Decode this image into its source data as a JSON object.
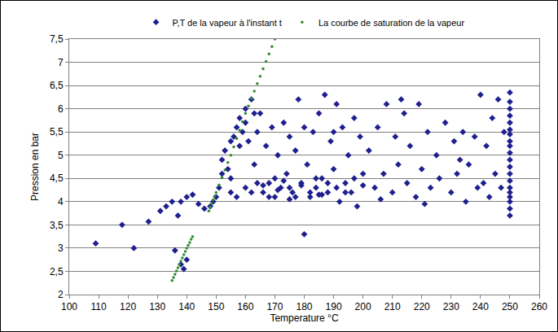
{
  "chart_data": {
    "type": "scatter",
    "x_label": "Temperature °C",
    "y_label": "Pression en bar",
    "grid": true,
    "legend": "top",
    "xlim": [
      100,
      260
    ],
    "xticks": [
      100,
      110,
      120,
      130,
      140,
      150,
      160,
      170,
      180,
      190,
      200,
      210,
      220,
      230,
      240,
      250,
      260
    ],
    "ylim": [
      2,
      7.5
    ],
    "yticks": [
      2,
      {
        "value": 2.5,
        "label": "2,5"
      },
      3,
      {
        "value": 3.5,
        "label": "3,5"
      },
      4,
      {
        "value": 4.5,
        "label": "4,5"
      },
      5,
      {
        "value": 5.5,
        "label": "5,5"
      },
      6,
      {
        "value": 6.5,
        "label": "6,5"
      },
      7,
      {
        "value": 7.5,
        "label": "7,5"
      }
    ],
    "series": [
      {
        "name": "P,T de la vapeur à l'instant t",
        "color": "#1f1f8f",
        "marker": "diamond",
        "x": [
          109,
          118,
          122,
          127,
          131,
          133,
          135,
          137,
          138,
          140,
          142,
          136,
          138,
          139,
          140,
          144,
          146,
          148,
          149,
          150,
          151,
          152,
          152,
          153,
          154,
          155,
          155,
          156,
          157,
          158,
          158,
          159,
          160,
          160,
          161,
          162,
          163,
          163,
          164,
          165,
          166,
          167,
          168,
          169,
          170,
          171,
          172,
          173,
          174,
          175,
          176,
          177,
          178,
          179,
          180,
          181,
          182,
          183,
          184,
          185,
          186,
          187,
          188,
          189,
          190,
          191,
          192,
          193,
          194,
          195,
          196,
          197,
          198,
          199,
          200,
          170,
          175,
          180,
          185,
          190,
          155,
          157,
          160,
          162,
          164,
          166,
          168,
          171,
          173,
          175,
          177,
          179,
          182,
          184,
          186,
          188,
          191,
          194,
          197,
          200,
          202,
          204,
          205,
          207,
          208,
          210,
          211,
          212,
          214,
          215,
          216,
          218,
          219,
          220,
          222,
          223,
          225,
          226,
          228,
          230,
          231,
          232,
          234,
          235,
          236,
          238,
          239,
          240,
          241,
          242,
          243,
          244,
          245,
          246,
          247,
          248,
          206,
          213,
          221,
          233,
          250,
          250,
          250,
          250,
          250,
          250,
          250,
          250,
          250,
          250,
          250,
          250,
          250,
          250,
          250,
          250,
          250,
          250,
          250,
          250
        ],
        "values": [
          3.1,
          3.5,
          3.0,
          3.57,
          3.8,
          3.9,
          4.0,
          3.7,
          4.0,
          4.1,
          4.15,
          2.95,
          2.65,
          2.55,
          2.75,
          3.95,
          3.85,
          3.9,
          4.0,
          4.1,
          4.3,
          4.6,
          4.9,
          5.1,
          4.7,
          5.3,
          4.5,
          5.4,
          5.6,
          5.2,
          5.8,
          5.5,
          6.0,
          5.7,
          5.3,
          6.2,
          5.9,
          4.8,
          5.5,
          5.9,
          4.2,
          5.2,
          4.4,
          5.6,
          4.1,
          5.0,
          4.3,
          5.7,
          4.6,
          5.4,
          4.2,
          5.1,
          6.2,
          4.4,
          5.6,
          4.8,
          4.1,
          5.5,
          4.3,
          5.9,
          4.5,
          6.3,
          4.2,
          5.3,
          4.7,
          6.1,
          4.0,
          5.6,
          4.4,
          5.0,
          4.2,
          5.8,
          3.9,
          5.4,
          4.6,
          4.5,
          4.05,
          3.3,
          4.15,
          5.5,
          4.2,
          4.1,
          4.3,
          4.2,
          4.4,
          4.35,
          4.1,
          4.25,
          4.45,
          4.3,
          4.1,
          4.35,
          4.2,
          4.5,
          4.15,
          4.4,
          4.3,
          4.2,
          4.5,
          4.35,
          5.1,
          4.3,
          5.6,
          4.6,
          6.1,
          4.2,
          5.4,
          4.8,
          5.9,
          4.4,
          5.2,
          4.1,
          6.1,
          4.7,
          5.5,
          4.3,
          5.0,
          4.5,
          5.7,
          4.2,
          5.3,
          4.6,
          5.5,
          4.0,
          4.8,
          5.4,
          4.3,
          6.3,
          4.4,
          5.2,
          4.1,
          5.8,
          4.6,
          6.2,
          4.3,
          5.5,
          4.05,
          6.2,
          3.95,
          4.9,
          3.7,
          3.85,
          4.0,
          4.1,
          4.2,
          4.3,
          4.45,
          4.6,
          4.75,
          4.9,
          5.05,
          5.2,
          5.3,
          5.45,
          5.55,
          5.7,
          5.85,
          6.0,
          6.15,
          6.35
        ]
      },
      {
        "name": "La courbe de saturation de la vapeur",
        "color": "#2e8b2e",
        "marker": "circle",
        "x": [
          147.5,
          148,
          148.5,
          149,
          149.5,
          150,
          151,
          152,
          153,
          154,
          155,
          156,
          157,
          158,
          159,
          160,
          161,
          162,
          163,
          164,
          165,
          166,
          167,
          168,
          169,
          170,
          135,
          135.5,
          136,
          136.5,
          137,
          137.5,
          138,
          138.5,
          139,
          139.5,
          140,
          140.5,
          141,
          141.5,
          142
        ],
        "values": [
          3.8,
          3.88,
          3.96,
          4.04,
          4.12,
          4.2,
          4.36,
          4.52,
          4.68,
          4.84,
          5.0,
          5.18,
          5.36,
          5.54,
          5.72,
          5.9,
          6.06,
          6.22,
          6.38,
          6.54,
          6.7,
          6.86,
          7.02,
          7.18,
          7.34,
          7.5,
          2.3,
          2.37,
          2.44,
          2.51,
          2.58,
          2.65,
          2.72,
          2.79,
          2.86,
          2.93,
          3.0,
          3.06,
          3.12,
          3.19,
          3.25
        ]
      }
    ]
  }
}
